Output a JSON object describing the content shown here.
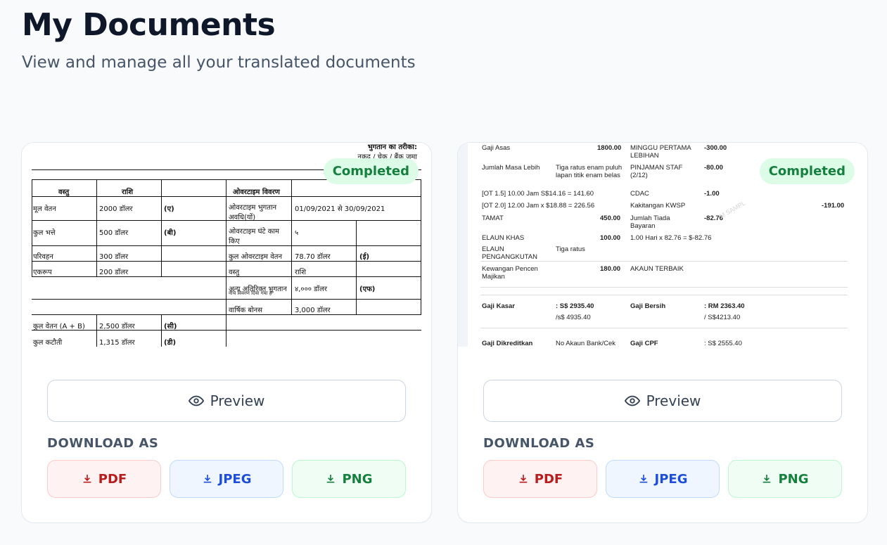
{
  "header": {
    "title": "My Documents",
    "subtitle": "View and manage all your translated documents"
  },
  "common": {
    "preview_label": "Preview",
    "download_label": "DOWNLOAD AS",
    "formats": [
      "PDF",
      "JPEG",
      "PNG"
    ],
    "status": "Completed"
  },
  "colors": {
    "completed_bg": "#dcfce7",
    "completed_text": "#15803d",
    "pdf": "#b91c1c",
    "jpeg": "#1d4ed8",
    "png": "#15803d"
  },
  "doc1": {
    "header_line1": "भुगतान का तरीका:",
    "header_line2": "नकद / चेक / बैंक जमा",
    "h_item": "वस्तु",
    "h_amount": "राशि",
    "h_overtime": "ओवरटाइम विवरण",
    "r1_item": "मूल वेतन",
    "r1_amount": "2000 डॉलर",
    "r1_code": "(ए)",
    "r1_ot_label": "ओवरटाइम भुगतान अवधि(यों)",
    "r1_ot_value": "01/09/2021 से 30/09/2021",
    "r2_item": "कुल भत्ते",
    "r2_amount": "500 डॉलर",
    "r2_code": "(बी)",
    "r2_ot_label": "ओवरटाइम घंटे काम किए",
    "r2_ot_value": "५",
    "r3_item": "परिवहन",
    "r3_amount": "300 डॉलर",
    "r3_ot_label": "कुल ओवरटाइम वेतन",
    "r3_ot_value": "78.70 डॉलर",
    "r3_code": "(ई)",
    "r4_item": "एकरूप",
    "r4_amount": "200 डॉलर",
    "r4_ot_label": "वस्तु",
    "r4_ot_value": "राशि",
    "r5_ot_label": "अन्य अतिरिक्त भुगतान",
    "r5_ot_sub": "नीचे विवरण दिया गया है",
    "r5_ot_value": "४,००० डॉलर",
    "r5_code": "(एफ)",
    "r6_ot_label": "वार्षिक बोनस",
    "r6_ot_value": "3,000 डॉलर",
    "r7_item": "कुल वेतन (A + B)",
    "r7_amount": "2,500 डॉलर",
    "r7_code": "(सी)",
    "r8_item": "कुल कटौती",
    "r8_amount": "1,315 डॉलर",
    "r8_code": "(डी)"
  },
  "doc2": {
    "gaji_asas": "Gaji Asas",
    "gaji_asas_v": "1800.00",
    "minggu": "MINGGU PERTAMA LEBIHAN",
    "minggu_v": "-300.00",
    "masa_lebih": "Jumlah Masa Lebih",
    "masa_lebih_desc": "Tiga ratus enam puluh lapan titik enam belas",
    "pinjaman": "PINJAMAN STAF (2/12)",
    "pinjaman_v": "-80.00",
    "ot15": "[OT 1.5] 10.00 Jam S$14.16 = 141.60",
    "cdac": "CDAC",
    "cdac_v": "-1.00",
    "ot20": "[OT 2.0] 12.00 Jam x $18.88 = 226.56",
    "kwsp": "Kakitangan KWSP",
    "kwsp_v": "-191.00",
    "tamat": "TAMAT",
    "tamat_v": "450.00",
    "tiada": "Jumlah Tiada Bayaran",
    "tiada_v": "-82.76",
    "khas": "ELAUN KHAS",
    "khas_v": "100.00",
    "hari": "1.00 Hari x 82.76 = $-82.76",
    "pengangkutan": "ELAUN PENGANGKUTAN",
    "pengangkutan_desc": "Tiga ratus",
    "pencen": "Kewangan Pencen Majikan",
    "pencen_v": "180.00",
    "akaun": "AKAUN TERBAIK",
    "kasar": "Gaji Kasar",
    "kasar_v": ": S$ 2935.40",
    "kasar_v2": "/s$ 4935.40",
    "bersih": "Gaji Bersih",
    "bersih_v": ": RM 2363.40",
    "bersih_v2": "/ S$4213.40",
    "dikreditkan": "Gaji Dikreditkan",
    "dikreditkan_v": "No Akaun Bank/Cek",
    "cpf": "Gaji CPF",
    "cpf_v": ": S$ 2555.40",
    "watermark": "M SAMPL"
  }
}
